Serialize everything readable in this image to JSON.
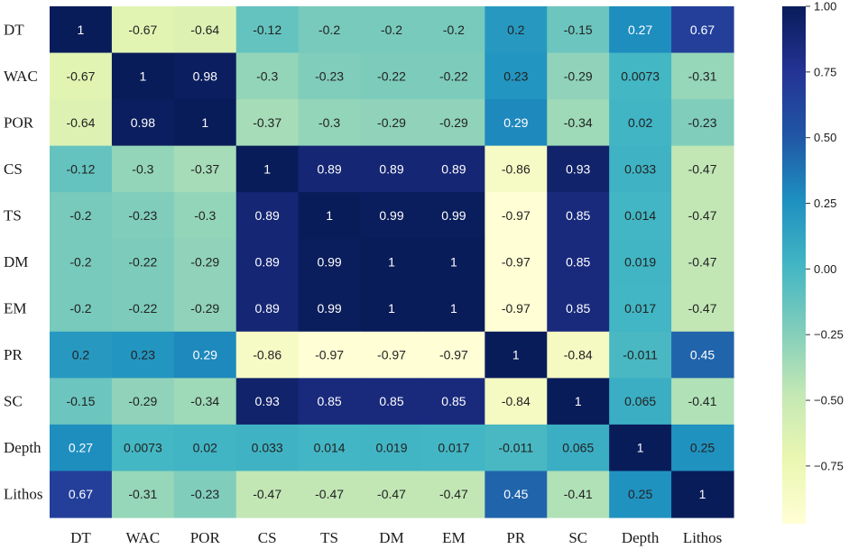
{
  "chart_data": {
    "type": "heatmap",
    "title": "",
    "xlabel": "",
    "ylabel": "",
    "row_labels": [
      "DT",
      "WAC",
      "POR",
      "CS",
      "TS",
      "DM",
      "EM",
      "PR",
      "SC",
      "Depth",
      "Lithos"
    ],
    "col_labels": [
      "DT",
      "WAC",
      "POR",
      "CS",
      "TS",
      "DM",
      "EM",
      "PR",
      "SC",
      "Depth",
      "Lithos"
    ],
    "values": [
      [
        1,
        -0.67,
        -0.64,
        -0.12,
        -0.2,
        -0.2,
        -0.2,
        0.2,
        -0.15,
        0.27,
        0.67
      ],
      [
        -0.67,
        1,
        0.98,
        -0.3,
        -0.23,
        -0.22,
        -0.22,
        0.23,
        -0.29,
        0.0073,
        -0.31
      ],
      [
        -0.64,
        0.98,
        1,
        -0.37,
        -0.3,
        -0.29,
        -0.29,
        0.29,
        -0.34,
        0.02,
        -0.23
      ],
      [
        -0.12,
        -0.3,
        -0.37,
        1,
        0.89,
        0.89,
        0.89,
        -0.86,
        0.93,
        0.033,
        -0.47
      ],
      [
        -0.2,
        -0.23,
        -0.3,
        0.89,
        1,
        0.99,
        0.99,
        -0.97,
        0.85,
        0.014,
        -0.47
      ],
      [
        -0.2,
        -0.22,
        -0.29,
        0.89,
        0.99,
        1,
        1,
        -0.97,
        0.85,
        0.019,
        -0.47
      ],
      [
        -0.2,
        -0.22,
        -0.29,
        0.89,
        0.99,
        1,
        1,
        -0.97,
        0.85,
        0.017,
        -0.47
      ],
      [
        0.2,
        0.23,
        0.29,
        -0.86,
        -0.97,
        -0.97,
        -0.97,
        1,
        -0.84,
        -0.011,
        0.45
      ],
      [
        -0.15,
        -0.29,
        -0.34,
        0.93,
        0.85,
        0.85,
        0.85,
        -0.84,
        1,
        0.065,
        -0.41
      ],
      [
        0.27,
        0.0073,
        0.02,
        0.033,
        0.014,
        0.019,
        0.017,
        -0.011,
        0.065,
        1,
        0.25
      ],
      [
        0.67,
        -0.31,
        -0.23,
        -0.47,
        -0.47,
        -0.47,
        -0.47,
        0.45,
        -0.41,
        0.25,
        1
      ]
    ],
    "cell_labels": [
      [
        "1",
        "-0.67",
        "-0.64",
        "-0.12",
        "-0.2",
        "-0.2",
        "-0.2",
        "0.2",
        "-0.15",
        "0.27",
        "0.67"
      ],
      [
        "-0.67",
        "1",
        "0.98",
        "-0.3",
        "-0.23",
        "-0.22",
        "-0.22",
        "0.23",
        "-0.29",
        "0.0073",
        "-0.31"
      ],
      [
        "-0.64",
        "0.98",
        "1",
        "-0.37",
        "-0.3",
        "-0.29",
        "-0.29",
        "0.29",
        "-0.34",
        "0.02",
        "-0.23"
      ],
      [
        "-0.12",
        "-0.3",
        "-0.37",
        "1",
        "0.89",
        "0.89",
        "0.89",
        "-0.86",
        "0.93",
        "0.033",
        "-0.47"
      ],
      [
        "-0.2",
        "-0.23",
        "-0.3",
        "0.89",
        "1",
        "0.99",
        "0.99",
        "-0.97",
        "0.85",
        "0.014",
        "-0.47"
      ],
      [
        "-0.2",
        "-0.22",
        "-0.29",
        "0.89",
        "0.99",
        "1",
        "1",
        "-0.97",
        "0.85",
        "0.019",
        "-0.47"
      ],
      [
        "-0.2",
        "-0.22",
        "-0.29",
        "0.89",
        "0.99",
        "1",
        "1",
        "-0.97",
        "0.85",
        "0.017",
        "-0.47"
      ],
      [
        "0.2",
        "0.23",
        "0.29",
        "-0.86",
        "-0.97",
        "-0.97",
        "-0.97",
        "1",
        "-0.84",
        "-0.011",
        "0.45"
      ],
      [
        "-0.15",
        "-0.29",
        "-0.34",
        "0.93",
        "0.85",
        "0.85",
        "0.85",
        "-0.84",
        "1",
        "0.065",
        "-0.41"
      ],
      [
        "0.27",
        "0.0073",
        "0.02",
        "0.033",
        "0.014",
        "0.019",
        "0.017",
        "-0.011",
        "0.065",
        "1",
        "0.25"
      ],
      [
        "0.67",
        "-0.31",
        "-0.23",
        "-0.47",
        "-0.47",
        "-0.47",
        "-0.47",
        "0.45",
        "-0.41",
        "0.25",
        "1"
      ]
    ],
    "colorbar": {
      "range": [
        -0.97,
        1.0
      ],
      "ticks": [
        1.0,
        0.75,
        0.5,
        0.25,
        0.0,
        -0.25,
        -0.5,
        -0.75
      ],
      "tick_labels": [
        "1.00",
        "0.75",
        "0.50",
        "0.25",
        "0.00",
        "−0.25",
        "−0.50",
        "−0.75"
      ],
      "position": "right"
    },
    "colormap": {
      "name": "YlGnBu",
      "stops": [
        "#fffed5",
        "#eaf7b1",
        "#c4e8b5",
        "#80cdbb",
        "#42b6c4",
        "#1e90c0",
        "#2056a5",
        "#243394",
        "#091c5a"
      ]
    },
    "text_colors": {
      "light_cells": "#222222",
      "dark_cells": "#ffffff"
    },
    "grid": false,
    "legend": false
  }
}
